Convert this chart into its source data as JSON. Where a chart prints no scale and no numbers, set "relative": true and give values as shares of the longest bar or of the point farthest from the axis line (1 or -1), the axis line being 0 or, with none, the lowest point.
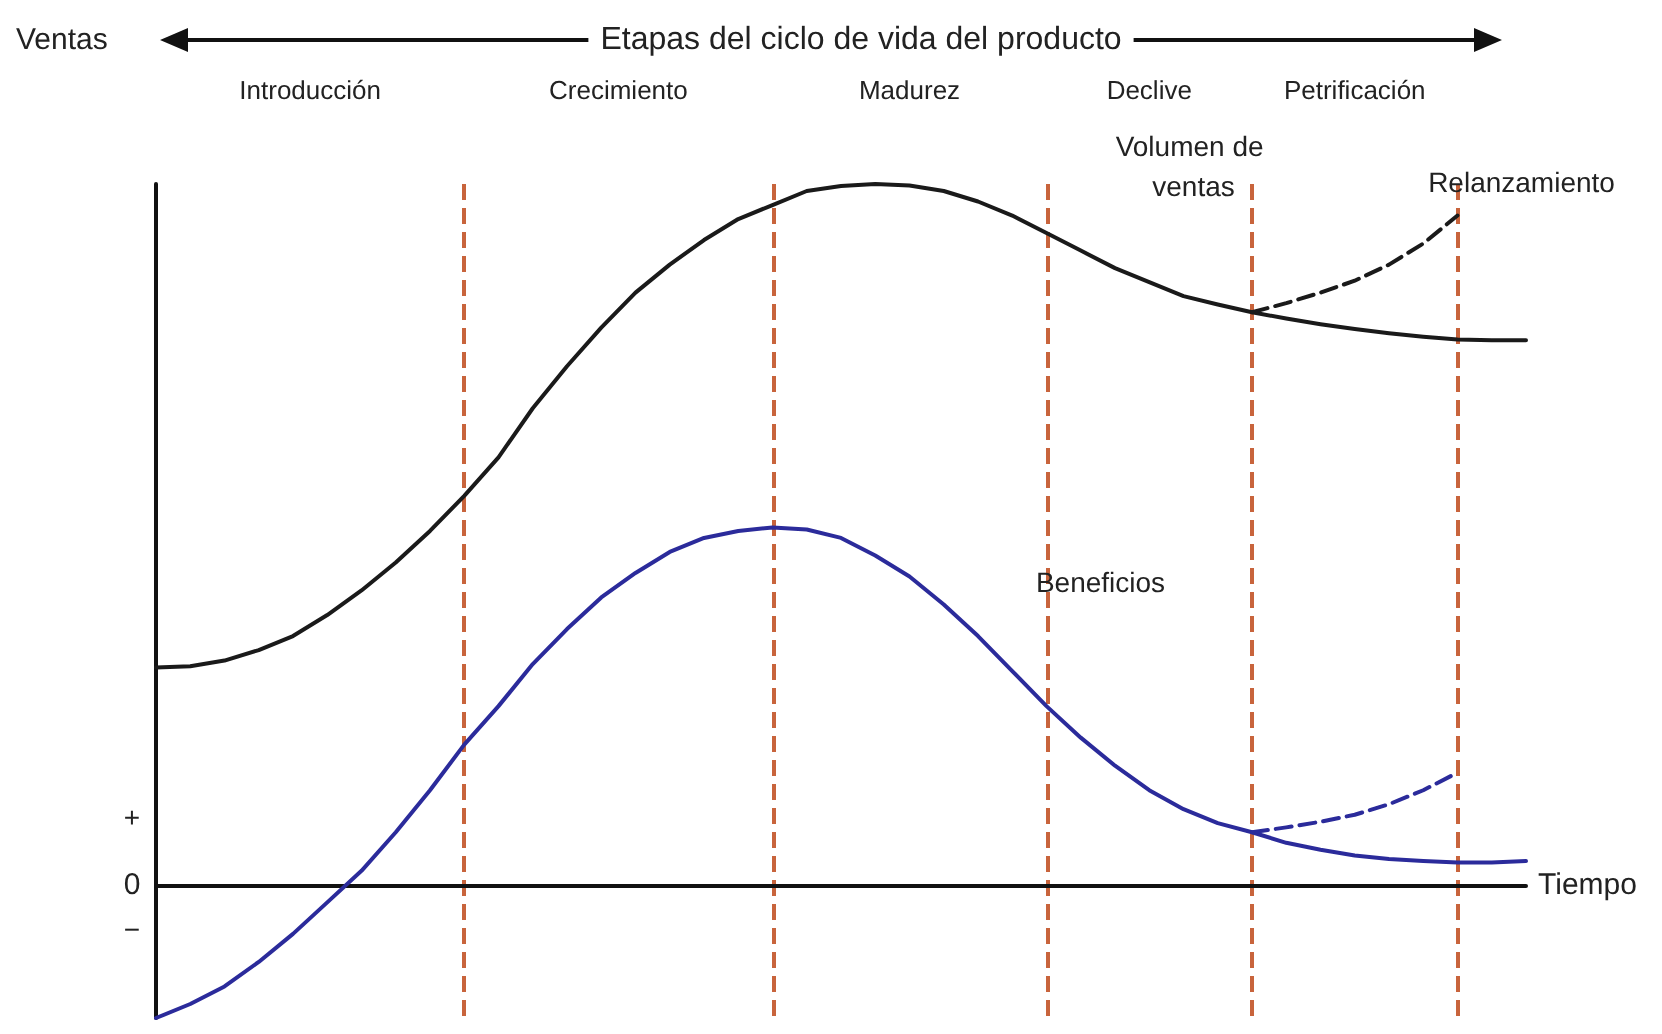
{
  "chart_data": {
    "type": "line",
    "relative": true,
    "subtitle": "Etapas del ciclo de vida del producto",
    "ylabel": "Ventas",
    "xlabel": "Tiempo",
    "legend": false,
    "grid": "x",
    "marker": "none",
    "annotations": [
      "Introducción",
      "Crecimiento",
      "Madurez",
      "Declive",
      "Petrificación",
      "+",
      "0",
      "−"
    ],
    "categories": [
      null,
      null,
      null,
      null,
      null,
      null,
      null,
      null,
      null,
      null,
      null,
      null,
      null,
      null,
      null,
      null,
      null,
      null,
      null,
      null,
      null,
      null,
      null,
      null,
      null,
      null,
      null,
      null,
      null,
      null,
      null,
      null,
      null,
      null,
      null,
      null,
      null,
      null,
      null,
      null,
      null
    ],
    "series": [
      {
        "name": "Volumen de ventas",
        "color": "#1a1a1a",
        "line_style": "solid",
        "values": [
          0.31,
          0.312,
          0.32,
          0.335,
          0.355,
          0.385,
          0.42,
          0.46,
          0.505,
          0.555,
          0.61,
          0.68,
          0.74,
          0.795,
          0.845,
          0.885,
          0.92,
          0.95,
          0.97,
          0.99,
          0.997,
          1,
          0.998,
          0.99,
          0.975,
          0.955,
          0.93,
          0.905,
          0.88,
          0.86,
          0.84,
          0.828,
          0.817,
          0.808,
          0.8,
          0.793,
          0.787,
          0.782,
          0.778,
          0.777,
          0.777
        ]
      },
      {
        "name": "Relanzamiento",
        "color": "#1a1a1a",
        "line_style": "dashed",
        "values": [
          null,
          null,
          null,
          null,
          null,
          null,
          null,
          null,
          null,
          null,
          null,
          null,
          null,
          null,
          null,
          null,
          null,
          null,
          null,
          null,
          null,
          null,
          null,
          null,
          null,
          null,
          null,
          null,
          null,
          null,
          null,
          null,
          0.817,
          0.83,
          0.845,
          0.862,
          0.885,
          0.915,
          0.955,
          null,
          null
        ]
      },
      {
        "name": "Beneficios",
        "color": "#2b2b9b",
        "line_style": "solid",
        "values": [
          -0.19,
          -0.17,
          -0.145,
          -0.11,
          -0.07,
          -0.025,
          0.02,
          0.075,
          0.135,
          0.2,
          0.255,
          0.315,
          0.365,
          0.41,
          0.445,
          0.475,
          0.495,
          0.505,
          0.51,
          0.507,
          0.495,
          0.47,
          0.44,
          0.4,
          0.355,
          0.305,
          0.255,
          0.21,
          0.17,
          0.135,
          0.108,
          0.088,
          0.075,
          0.06,
          0.05,
          0.042,
          0.037,
          0.034,
          0.032,
          0.032,
          0.034
        ]
      },
      {
        "color": "#2b2b9b",
        "line_style": "dashed",
        "values": [
          null,
          null,
          null,
          null,
          null,
          null,
          null,
          null,
          null,
          null,
          null,
          null,
          null,
          null,
          null,
          null,
          null,
          null,
          null,
          null,
          null,
          null,
          null,
          null,
          null,
          null,
          null,
          null,
          null,
          null,
          null,
          null,
          0.075,
          0.082,
          0.09,
          0.1,
          0.115,
          0.135,
          0.16,
          null,
          null
        ]
      }
    ]
  }
}
